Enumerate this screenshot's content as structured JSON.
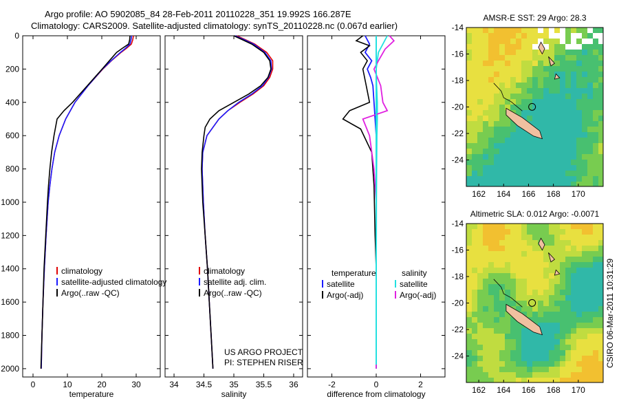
{
  "header": {
    "line1": "Argo profile: AO 5902085_84 28-Feb-2011 20110228_351 19.992S 166.287E",
    "line2": "Climatology: CARS2009. Satellite-adjusted climatology: synTS_20110228.nc (0.067d earlier)"
  },
  "side_stamp": "CSIRO 06-Mar-2011 10:31:29",
  "colors": {
    "climatology": "#e00000",
    "satellite": "#1a1aff",
    "argo": "#000000",
    "satellite_salinity": "#22e0e0",
    "argo_salinity_diff": "#e020e0"
  },
  "chart_data": [
    {
      "type": "line",
      "id": "temperature",
      "title": "",
      "xlabel": "temperature",
      "ylabel": "",
      "xlim": [
        -3,
        37
      ],
      "ylim": [
        2050,
        0
      ],
      "xticks": [
        0,
        10,
        20,
        30
      ],
      "yticks": [
        0,
        200,
        400,
        600,
        800,
        1000,
        1200,
        1400,
        1600,
        1800,
        2000
      ],
      "legend": {
        "position": "bottom-right",
        "entries": [
          "climatology",
          "satellite-adjusted climatology",
          "Argo(..raw -QC)"
        ]
      },
      "series": [
        {
          "name": "climatology",
          "color_key": "climatology",
          "y": [
            0,
            25,
            50,
            75,
            100,
            150,
            200,
            300,
            400,
            500,
            600,
            700,
            800,
            900,
            1000,
            1200,
            1400,
            1600,
            1800,
            2000
          ],
          "x": [
            29.2,
            29.0,
            28.6,
            27.2,
            25.6,
            22.8,
            20.3,
            16.0,
            12.2,
            9.5,
            7.6,
            6.3,
            5.5,
            4.9,
            4.4,
            3.8,
            3.3,
            2.9,
            2.6,
            2.4
          ]
        },
        {
          "name": "satellite-adjusted climatology",
          "color_key": "satellite",
          "y": [
            0,
            25,
            50,
            75,
            100,
            150,
            200,
            300,
            400,
            500,
            600,
            700,
            800,
            900,
            1000,
            1200,
            1400,
            1600,
            1800,
            2000
          ],
          "x": [
            28.7,
            28.5,
            28.2,
            26.9,
            25.4,
            22.7,
            20.2,
            16.0,
            12.2,
            9.5,
            7.6,
            6.3,
            5.5,
            4.9,
            4.4,
            3.8,
            3.3,
            2.9,
            2.6,
            2.4
          ]
        },
        {
          "name": "Argo(..raw -QC)",
          "color_key": "argo",
          "y": [
            0,
            25,
            50,
            75,
            100,
            150,
            200,
            300,
            400,
            450,
            500,
            600,
            700,
            800,
            900,
            1000,
            1200,
            1400,
            1600,
            1800,
            2000
          ],
          "x": [
            28.2,
            28.1,
            27.8,
            26.0,
            24.3,
            22.2,
            20.1,
            15.8,
            11.5,
            9.0,
            7.0,
            6.1,
            5.4,
            4.9,
            4.5,
            4.2,
            3.7,
            3.2,
            2.9,
            2.6,
            2.3
          ]
        }
      ]
    },
    {
      "type": "line",
      "id": "salinity",
      "title": "",
      "xlabel": "salinity",
      "ylabel": "",
      "xlim": [
        33.85,
        36.15
      ],
      "ylim": [
        2050,
        0
      ],
      "xticks": [
        34,
        34.5,
        35,
        35.5,
        36
      ],
      "legend": {
        "position": "bottom-right",
        "entries": [
          "climatology",
          "satellite adj. clim.",
          "Argo(..raw -QC)"
        ]
      },
      "annotation": [
        "US ARGO PROJECT",
        "PI: STEPHEN RISER"
      ],
      "series": [
        {
          "name": "climatology",
          "color_key": "climatology",
          "y": [
            0,
            25,
            50,
            100,
            150,
            200,
            250,
            300,
            350,
            400,
            450,
            500,
            600,
            700,
            800,
            900,
            1000,
            1200,
            1400,
            1600,
            1800,
            2000
          ],
          "x": [
            35.05,
            35.2,
            35.35,
            35.55,
            35.65,
            35.65,
            35.6,
            35.5,
            35.32,
            35.1,
            34.9,
            34.75,
            34.55,
            34.48,
            34.47,
            34.48,
            34.49,
            34.52,
            34.56,
            34.59,
            34.62,
            34.65
          ]
        },
        {
          "name": "satellite adj. clim.",
          "color_key": "satellite",
          "y": [
            0,
            25,
            50,
            100,
            150,
            200,
            250,
            300,
            350,
            400,
            450,
            500,
            600,
            700,
            800,
            900,
            1000,
            1200,
            1400,
            1600,
            1800,
            2000
          ],
          "x": [
            35.02,
            35.18,
            35.33,
            35.52,
            35.62,
            35.63,
            35.58,
            35.48,
            35.3,
            35.08,
            34.9,
            34.75,
            34.55,
            34.48,
            34.47,
            34.48,
            34.49,
            34.52,
            34.56,
            34.59,
            34.62,
            34.65
          ]
        },
        {
          "name": "Argo(..raw -QC)",
          "color_key": "argo",
          "y": [
            0,
            25,
            50,
            100,
            150,
            200,
            250,
            300,
            350,
            400,
            450,
            500,
            550,
            600,
            700,
            800,
            900,
            1000,
            1200,
            1400,
            1600,
            1800,
            2000
          ],
          "x": [
            35.0,
            35.15,
            35.3,
            35.5,
            35.6,
            35.62,
            35.57,
            35.45,
            35.25,
            35.0,
            34.75,
            34.6,
            34.52,
            34.5,
            34.47,
            34.46,
            34.47,
            34.48,
            34.52,
            34.56,
            34.59,
            34.62,
            34.65
          ]
        }
      ]
    },
    {
      "type": "line",
      "id": "difference",
      "title": "",
      "xlabel": "difference from climatology",
      "ylabel": "",
      "xlim": [
        -3.1,
        3.1
      ],
      "ylim": [
        2050,
        0
      ],
      "xticks": [
        -2,
        0,
        2
      ],
      "legend": {
        "position": "bottom",
        "entries": [
          "temperature",
          "satellite",
          "Argo(-adj)",
          "salinity",
          "satellite",
          "Argo(-adj)"
        ]
      },
      "series": [
        {
          "name": "temperature satellite",
          "color_key": "satellite",
          "y": [
            0,
            50,
            100,
            150,
            200,
            250,
            300,
            400,
            500,
            600,
            800,
            1000,
            1500,
            2000
          ],
          "x": [
            -0.5,
            -0.3,
            -0.5,
            -0.2,
            -0.4,
            -0.25,
            -0.15,
            -0.1,
            -0.05,
            0,
            0,
            0,
            0,
            0
          ]
        },
        {
          "name": "temperature Argo(-adj)",
          "color_key": "argo",
          "y": [
            0,
            30,
            60,
            100,
            150,
            200,
            300,
            400,
            450,
            500,
            560,
            700,
            900,
            1200,
            1400,
            1600,
            2000
          ],
          "x": [
            -0.6,
            -0.9,
            -0.3,
            -0.7,
            -0.4,
            -0.6,
            -0.45,
            -0.3,
            -1.2,
            -1.5,
            -0.7,
            -0.2,
            -0.1,
            -0.05,
            0,
            0,
            0
          ]
        },
        {
          "name": "salinity satellite",
          "color_key": "satellite_salinity",
          "y": [
            0,
            50,
            100,
            150,
            200,
            300,
            400,
            500,
            600,
            800,
            1000,
            1500,
            2000
          ],
          "x": [
            0.5,
            0.3,
            0.1,
            0.05,
            0,
            0.02,
            0.05,
            0.05,
            0.03,
            0.02,
            0.01,
            0,
            0
          ]
        },
        {
          "name": "salinity Argo(-adj)",
          "color_key": "argo_salinity_diff",
          "y": [
            0,
            30,
            80,
            150,
            200,
            300,
            400,
            450,
            500,
            600,
            800,
            1000,
            1500,
            2000
          ],
          "x": [
            0.6,
            0.8,
            0.4,
            0.1,
            -0.1,
            0.2,
            0.3,
            0.5,
            -0.6,
            -0.3,
            -0.1,
            0,
            0,
            0
          ]
        }
      ]
    },
    {
      "type": "heatmap",
      "id": "sst_map",
      "title": "AMSR-E SST: 29 Argo: 28.3",
      "xlim": [
        161,
        172
      ],
      "ylim": [
        -26,
        -14
      ],
      "xticks": [
        162,
        164,
        166,
        168,
        170
      ],
      "yticks": [
        -14,
        -16,
        -18,
        -20,
        -22,
        -24
      ],
      "marker": {
        "lon": 166.287,
        "lat": -19.992
      }
    },
    {
      "type": "heatmap",
      "id": "sla_map",
      "title": "Altimetric SLA: 0.012 Argo: -0.0071",
      "xlim": [
        161,
        172
      ],
      "ylim": [
        -26,
        -14
      ],
      "xticks": [
        162,
        164,
        166,
        168,
        170
      ],
      "yticks": [
        -14,
        -16,
        -18,
        -20,
        -22,
        -24
      ],
      "marker": {
        "lon": 166.287,
        "lat": -19.992
      }
    }
  ]
}
